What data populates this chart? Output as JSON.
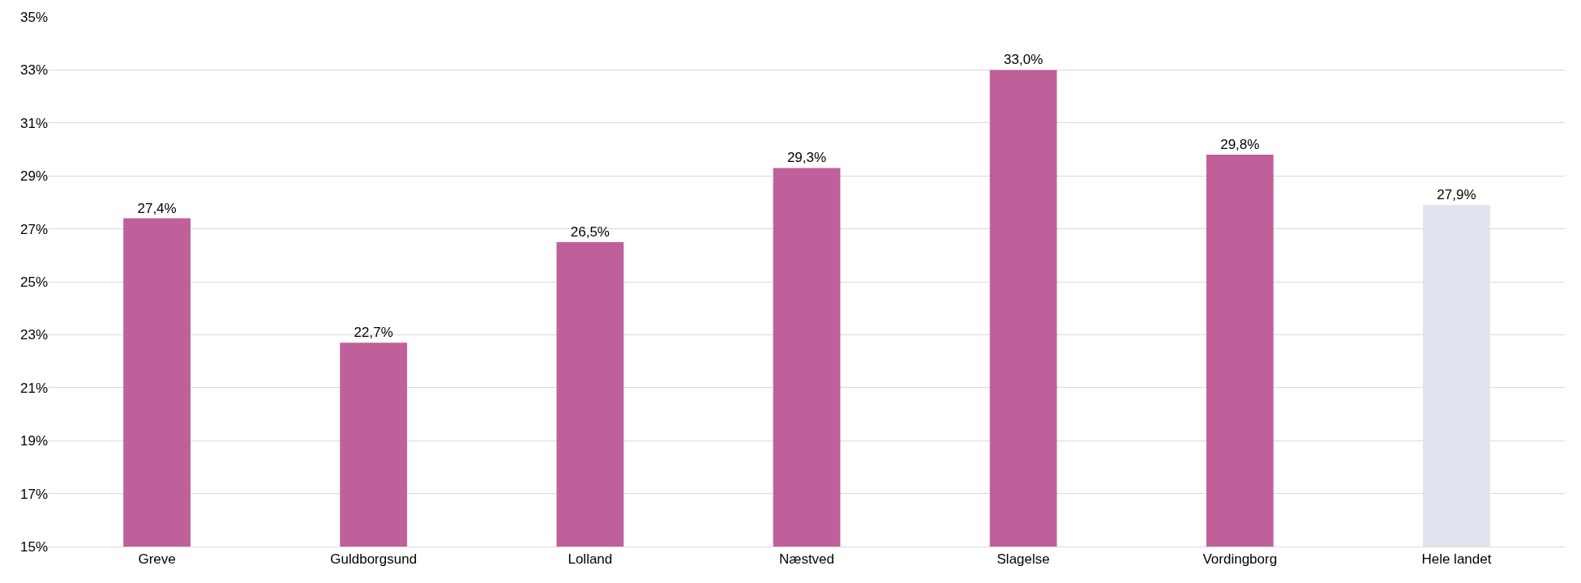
{
  "chart_data": {
    "type": "bar",
    "categories": [
      "Greve",
      "Guldborgsund",
      "Lolland",
      "Næstved",
      "Slagelse",
      "Vordingborg",
      "Hele landet"
    ],
    "values": [
      27.4,
      22.7,
      26.5,
      29.3,
      33.0,
      29.8,
      27.9
    ],
    "colors": [
      "#c0609b",
      "#c0609b",
      "#c0609b",
      "#c0609b",
      "#c0609b",
      "#c0609b",
      "#e1e3ee"
    ],
    "value_labels": [
      "27,4%",
      "22,7%",
      "26,5%",
      "29,3%",
      "33,0%",
      "29,8%",
      "27,9%"
    ],
    "ylim": [
      15,
      35
    ],
    "yticks": [
      {
        "value": 15,
        "label": "15%"
      },
      {
        "value": 17,
        "label": "17%"
      },
      {
        "value": 19,
        "label": "19%"
      },
      {
        "value": 21,
        "label": "21%"
      },
      {
        "value": 23,
        "label": "23%"
      },
      {
        "value": 25,
        "label": "25%"
      },
      {
        "value": 27,
        "label": "27%"
      },
      {
        "value": 29,
        "label": "29%"
      },
      {
        "value": 31,
        "label": "31%"
      },
      {
        "value": 33,
        "label": "33%"
      },
      {
        "value": 35,
        "label": "35%"
      }
    ],
    "grid": "y"
  }
}
